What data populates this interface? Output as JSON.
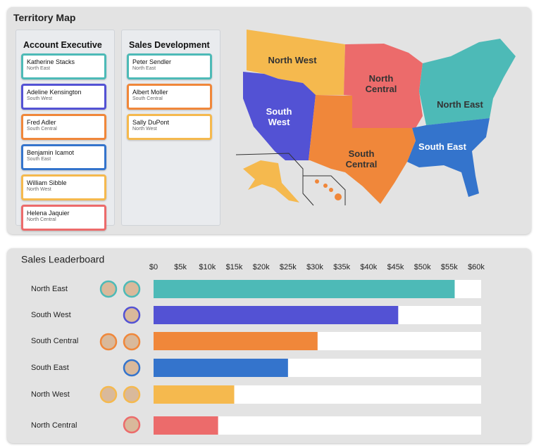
{
  "territory_map": {
    "title": "Territory Map",
    "columns": [
      {
        "title": "Account Executive",
        "people": [
          {
            "name": "Katherine Stacks",
            "region": "North East"
          },
          {
            "name": "Adeline Kensington",
            "region": "South West"
          },
          {
            "name": "Fred Adler",
            "region": "South Central"
          },
          {
            "name": "Benjamin Icamot",
            "region": "South East"
          },
          {
            "name": "William Sibble",
            "region": "North West"
          },
          {
            "name": "Helena Jaquier",
            "region": "North Central"
          }
        ]
      },
      {
        "title": "Sales Development",
        "people": [
          {
            "name": "Peter Sendler",
            "region": "North East"
          },
          {
            "name": "Albert Moller",
            "region": "South Central"
          },
          {
            "name": "Sally DuPont",
            "region": "North West"
          }
        ]
      }
    ],
    "map_labels": [
      "North West",
      "North Central",
      "South West",
      "North East",
      "South East",
      "South Central"
    ]
  },
  "chart_data": {
    "type": "bar",
    "orientation": "horizontal",
    "title": "Sales Leaderboard",
    "categories": [
      "North East",
      "South West",
      "South Central",
      "South East",
      "North West",
      "North Central"
    ],
    "values": [
      56000,
      45500,
      30500,
      25000,
      15000,
      12000
    ],
    "colors": [
      "#4dbab7",
      "#5352d4",
      "#f0873a",
      "#3474cc",
      "#f5b94e",
      "#ec6b6b"
    ],
    "xlim": [
      0,
      60000
    ],
    "xticks": [
      {
        "value": 0,
        "label": "$0"
      },
      {
        "value": 5000,
        "label": "$5k"
      },
      {
        "value": 10000,
        "label": "$10k"
      },
      {
        "value": 15000,
        "label": "$15k"
      },
      {
        "value": 20000,
        "label": "$20k"
      },
      {
        "value": 25000,
        "label": "$25k"
      },
      {
        "value": 30000,
        "label": "$30k"
      },
      {
        "value": 35000,
        "label": "$35k"
      },
      {
        "value": 40000,
        "label": "$40k"
      },
      {
        "value": 45000,
        "label": "$45k"
      },
      {
        "value": 50000,
        "label": "$50k"
      },
      {
        "value": 55000,
        "label": "$55k"
      },
      {
        "value": 60000,
        "label": "$60k"
      }
    ]
  }
}
